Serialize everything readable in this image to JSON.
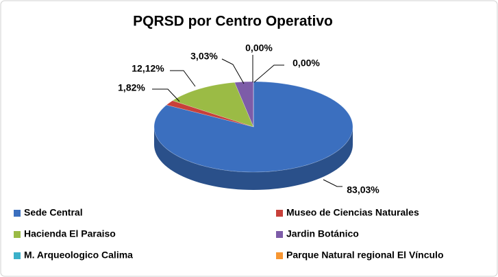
{
  "chart_data": {
    "type": "pie3d",
    "title": "PQRSD por Centro Operativo",
    "categories": [
      "Sede Central",
      "Museo de Ciencias Naturales",
      "Hacienda El Paraiso",
      "Jardin Botánico",
      "M. Arqueologico Calima",
      "Parque Natural regional El Vínculo"
    ],
    "values": [
      83.03,
      1.82,
      12.12,
      3.03,
      0.0,
      0.0
    ],
    "value_labels": [
      "83,03%",
      "1,82%",
      "12,12%",
      "3,03%",
      "0,00%",
      "0,00%"
    ],
    "colors": [
      "#3b6fbf",
      "#c8403a",
      "#9bbb45",
      "#7d5ca8",
      "#3bb0c9",
      "#f79632"
    ],
    "legend": "bottom"
  }
}
